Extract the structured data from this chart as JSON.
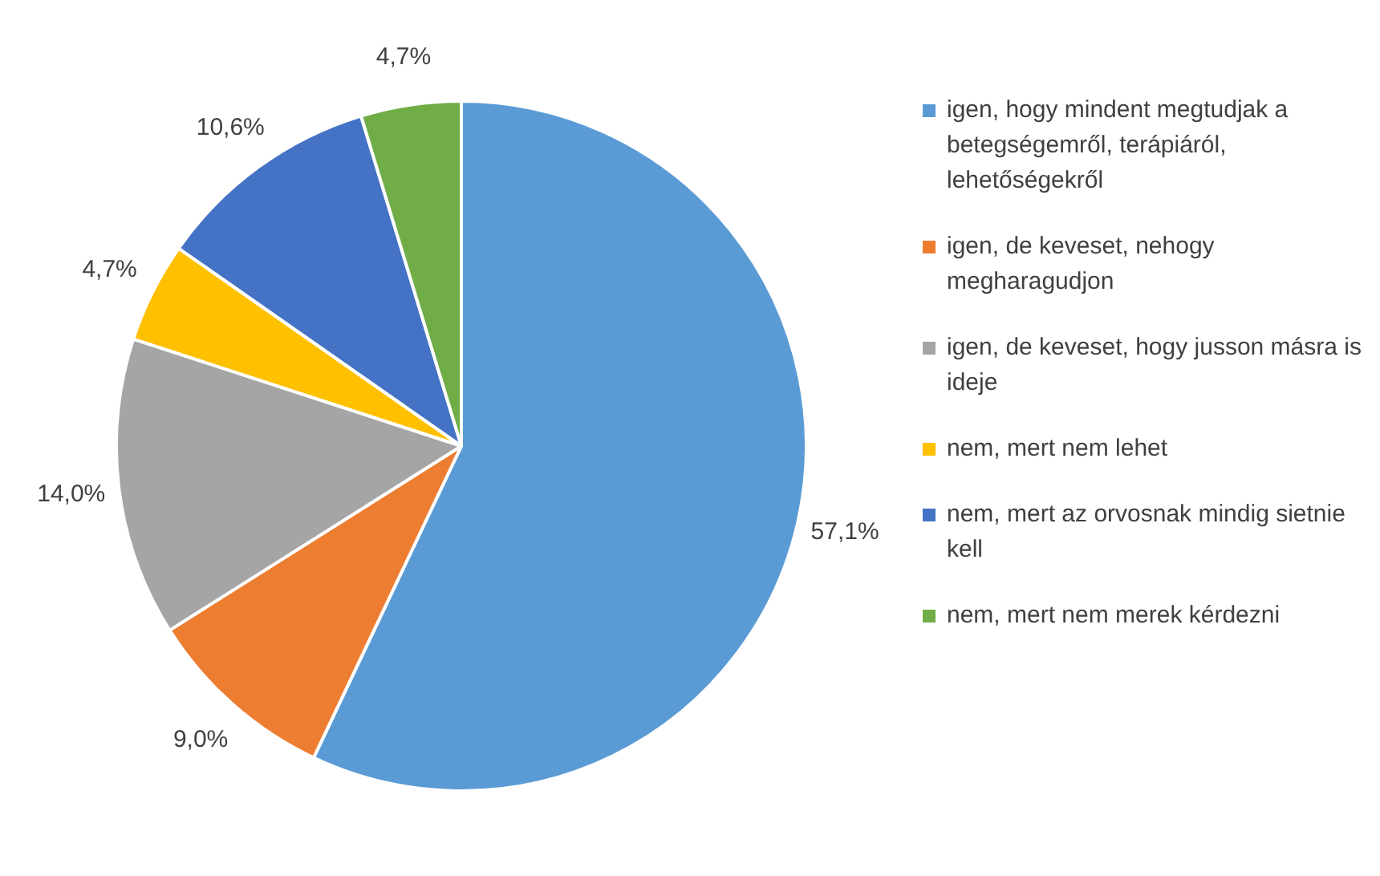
{
  "chart_data": {
    "type": "pie",
    "categories": [
      "igen, hogy mindent megtudjak a betegségemről, terápiáról, lehetőségekről",
      "igen, de keveset, nehogy megharagudjon",
      "igen, de keveset, hogy jusson másra is ideje",
      "nem, mert nem lehet",
      "nem, mert az orvosnak mindig sietnie kell",
      "nem, mert nem merek kérdezni"
    ],
    "values": [
      57.1,
      9.0,
      14.0,
      4.7,
      10.6,
      4.7
    ],
    "colors": [
      "#5b9bd5",
      "#ed7d31",
      "#a5a5a5",
      "#ffc000",
      "#4472c4",
      "#70ad47"
    ],
    "value_labels": [
      "57,1%",
      "9,0%",
      "14,0%",
      "4,7%",
      "10,6%",
      "4,7%"
    ],
    "legend": "right"
  }
}
